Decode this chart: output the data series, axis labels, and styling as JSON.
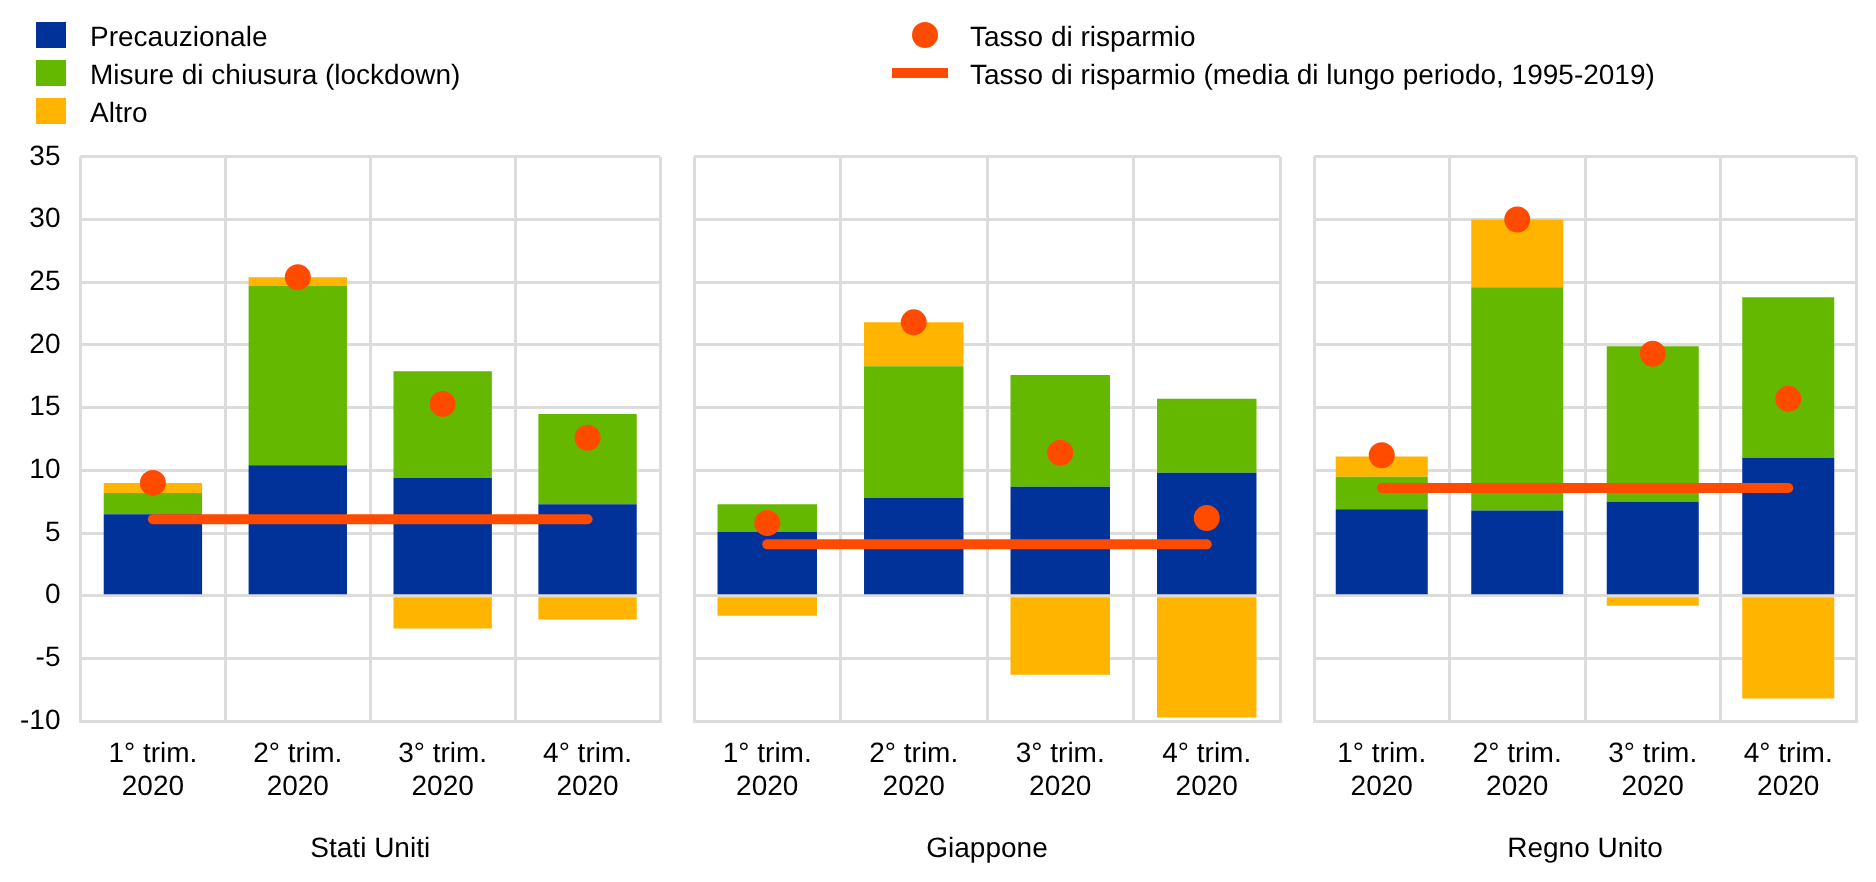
{
  "chart_data": [
    {
      "type": "bar",
      "stacked": true,
      "categories": [
        "1° trim. 2020",
        "2° trim. 2020",
        "3° trim. 2020",
        "4° trim. 2020"
      ],
      "xlabel": "Stati Uniti",
      "ylim": [
        -10,
        35
      ],
      "yticks": [
        -10,
        -5,
        0,
        5,
        10,
        15,
        20,
        25,
        30,
        35
      ],
      "grid": true,
      "legend": "top",
      "series": [
        {
          "name": "Precauzionale",
          "color": "#003299",
          "values": [
            6.5,
            10.4,
            9.4,
            7.3
          ]
        },
        {
          "name": "Misure di chiusura (lockdown)",
          "color": "#65b800",
          "values": [
            1.7,
            14.3,
            8.5,
            7.2
          ]
        },
        {
          "name": "Altro",
          "color": "#ffb400",
          "values": [
            0.8,
            0.7,
            -2.6,
            -1.9
          ]
        },
        {
          "name": "Tasso di risparmio",
          "type": "scatter",
          "marker": "circle",
          "color": "#ff4b00",
          "values": [
            9.0,
            25.4,
            15.3,
            12.6
          ]
        },
        {
          "name": "Tasso di risparmio (media di lungo periodo, 1995-2019)",
          "type": "line",
          "color": "#ff4b00",
          "values": [
            6.1,
            6.1,
            6.1,
            6.1
          ]
        }
      ]
    },
    {
      "type": "bar",
      "stacked": true,
      "categories": [
        "1° trim. 2020",
        "2° trim. 2020",
        "3° trim. 2020",
        "4° trim. 2020"
      ],
      "xlabel": "Giappone",
      "ylim": [
        -10,
        35
      ],
      "yticks": [
        -10,
        -5,
        0,
        5,
        10,
        15,
        20,
        25,
        30,
        35
      ],
      "tick_labels": "x",
      "grid": true,
      "series": [
        {
          "color": "#003299",
          "values": [
            5.1,
            7.8,
            8.7,
            9.8
          ]
        },
        {
          "color": "#65b800",
          "values": [
            2.2,
            10.5,
            8.9,
            5.9
          ]
        },
        {
          "color": "#ffb400",
          "values": [
            -1.6,
            3.5,
            -6.3,
            -9.7
          ]
        },
        {
          "type": "scatter",
          "marker": "circle",
          "color": "#ff4b00",
          "values": [
            5.8,
            21.8,
            11.4,
            6.2
          ]
        },
        {
          "type": "line",
          "color": "#ff4b00",
          "values": [
            4.1,
            4.1,
            4.1,
            4.1
          ]
        }
      ]
    },
    {
      "type": "bar",
      "stacked": true,
      "categories": [
        "1° trim. 2020",
        "2° trim. 2020",
        "3° trim. 2020",
        "4° trim. 2020"
      ],
      "xlabel": "Regno Unito",
      "ylim": [
        -10,
        35
      ],
      "yticks": [
        -10,
        -5,
        0,
        5,
        10,
        15,
        20,
        25,
        30,
        35
      ],
      "tick_labels": "x",
      "grid": true,
      "series": [
        {
          "color": "#003299",
          "values": [
            6.9,
            6.8,
            7.5,
            11.0
          ]
        },
        {
          "color": "#65b800",
          "values": [
            2.6,
            17.8,
            12.4,
            12.8
          ]
        },
        {
          "color": "#ffb400",
          "values": [
            1.6,
            5.4,
            -0.8,
            -8.2
          ]
        },
        {
          "type": "scatter",
          "marker": "circle",
          "color": "#ff4b00",
          "values": [
            11.2,
            30.0,
            19.3,
            15.7
          ]
        },
        {
          "type": "line",
          "color": "#ff4b00",
          "values": [
            8.6,
            8.6,
            8.6,
            8.6
          ]
        }
      ]
    }
  ]
}
